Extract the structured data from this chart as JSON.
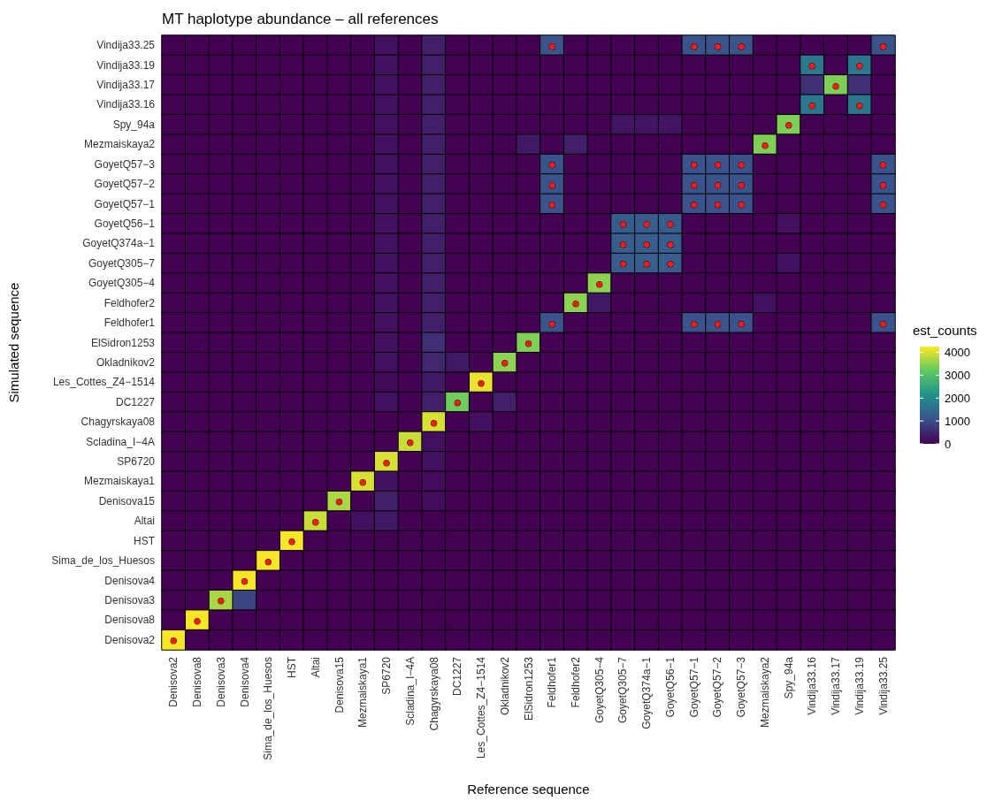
{
  "chart_data": {
    "type": "heatmap",
    "title": "MT haplotype abundance – all references",
    "xlabel": "Reference sequence",
    "ylabel": "Simulated sequence",
    "clabel": "est_counts",
    "categories": [
      "Denisova2",
      "Denisova8",
      "Denisova3",
      "Denisova4",
      "Sima_de_los_Huesos",
      "HST",
      "Altai",
      "Denisova15",
      "Mezmaiskaya1",
      "SP6720",
      "Scladina_I−4A",
      "Chagyrskaya08",
      "DC1227",
      "Les_Cottes_Z4−1514",
      "Okladnikov2",
      "ElSidron1253",
      "Feldhofer1",
      "Feldhofer2",
      "GoyetQ305−4",
      "GoyetQ305−7",
      "GoyetQ374a−1",
      "GoyetQ56−1",
      "GoyetQ57−1",
      "GoyetQ57−2",
      "GoyetQ57−3",
      "Mezmaiskaya2",
      "Spy_94a",
      "Vindija33.16",
      "Vindija33.17",
      "Vindija33.19",
      "Vindija33.25"
    ],
    "y_categories": [
      "Vindija33.25",
      "Vindija33.19",
      "Vindija33.17",
      "Vindija33.16",
      "Spy_94a",
      "Mezmaiskaya2",
      "GoyetQ57−3",
      "GoyetQ57−2",
      "GoyetQ57−1",
      "GoyetQ56−1",
      "GoyetQ374a−1",
      "GoyetQ305−7",
      "GoyetQ305−4",
      "Feldhofer2",
      "Feldhofer1",
      "ElSidron1253",
      "Okladnikov2",
      "Les_Cottes_Z4−1514",
      "DC1227",
      "Chagyrskaya08",
      "Scladina_I−4A",
      "SP6720",
      "Mezmaiskaya1",
      "Denisova15",
      "Altai",
      "HST",
      "Sima_de_los_Huesos",
      "Denisova4",
      "Denisova3",
      "Denisova8",
      "Denisova2"
    ],
    "cells": [
      [
        0,
        0,
        0,
        0,
        0,
        0,
        0,
        0,
        0,
        200,
        0,
        400,
        0,
        0,
        0,
        0,
        1100,
        0,
        0,
        0,
        0,
        0,
        1100,
        1100,
        1100,
        0,
        0,
        0,
        0,
        0,
        1100
      ],
      [
        0,
        0,
        0,
        0,
        0,
        0,
        0,
        0,
        0,
        200,
        0,
        400,
        0,
        0,
        0,
        0,
        0,
        0,
        0,
        0,
        0,
        0,
        0,
        0,
        0,
        0,
        0,
        1700,
        0,
        1700,
        0
      ],
      [
        0,
        0,
        0,
        0,
        0,
        0,
        0,
        0,
        0,
        200,
        0,
        400,
        0,
        0,
        0,
        0,
        0,
        0,
        0,
        0,
        0,
        0,
        0,
        0,
        0,
        0,
        0,
        600,
        3400,
        600,
        0
      ],
      [
        0,
        0,
        0,
        0,
        0,
        0,
        0,
        0,
        0,
        200,
        0,
        400,
        0,
        0,
        0,
        0,
        0,
        0,
        0,
        0,
        0,
        0,
        0,
        0,
        0,
        0,
        0,
        1700,
        0,
        1700,
        0
      ],
      [
        0,
        0,
        0,
        0,
        0,
        0,
        0,
        0,
        0,
        200,
        0,
        400,
        0,
        0,
        0,
        0,
        0,
        0,
        0,
        250,
        250,
        250,
        0,
        0,
        0,
        0,
        3400,
        0,
        0,
        0,
        0
      ],
      [
        0,
        0,
        0,
        0,
        0,
        0,
        0,
        0,
        0,
        200,
        0,
        400,
        0,
        0,
        0,
        300,
        0,
        400,
        0,
        0,
        0,
        0,
        0,
        0,
        0,
        3400,
        0,
        0,
        0,
        0,
        0
      ],
      [
        0,
        0,
        0,
        0,
        0,
        0,
        0,
        0,
        0,
        200,
        0,
        400,
        0,
        0,
        0,
        0,
        1100,
        0,
        0,
        0,
        0,
        0,
        1100,
        1100,
        1100,
        0,
        0,
        0,
        0,
        0,
        1100
      ],
      [
        0,
        0,
        0,
        0,
        0,
        0,
        0,
        0,
        0,
        200,
        0,
        400,
        0,
        0,
        0,
        0,
        1100,
        0,
        0,
        0,
        0,
        0,
        1100,
        1100,
        1100,
        0,
        0,
        0,
        0,
        0,
        1100
      ],
      [
        0,
        0,
        0,
        0,
        0,
        0,
        0,
        0,
        0,
        200,
        0,
        400,
        0,
        0,
        0,
        0,
        1100,
        0,
        0,
        0,
        0,
        0,
        1100,
        1100,
        1100,
        0,
        0,
        0,
        0,
        0,
        1100
      ],
      [
        0,
        0,
        0,
        0,
        0,
        0,
        0,
        0,
        0,
        200,
        0,
        400,
        0,
        0,
        0,
        0,
        0,
        0,
        0,
        1250,
        1250,
        1250,
        0,
        0,
        0,
        0,
        200,
        0,
        0,
        0,
        0
      ],
      [
        0,
        0,
        0,
        0,
        0,
        0,
        0,
        0,
        0,
        200,
        0,
        400,
        0,
        0,
        0,
        0,
        0,
        0,
        0,
        1250,
        1250,
        1250,
        0,
        0,
        0,
        0,
        0,
        0,
        0,
        0,
        0
      ],
      [
        0,
        0,
        0,
        0,
        0,
        0,
        0,
        0,
        0,
        200,
        0,
        400,
        0,
        0,
        0,
        0,
        0,
        0,
        0,
        1250,
        1250,
        1250,
        0,
        0,
        0,
        0,
        200,
        0,
        0,
        0,
        0
      ],
      [
        0,
        0,
        0,
        0,
        0,
        0,
        0,
        0,
        0,
        200,
        0,
        400,
        0,
        0,
        0,
        0,
        0,
        0,
        3500,
        0,
        0,
        0,
        0,
        0,
        0,
        0,
        0,
        0,
        0,
        0,
        0
      ],
      [
        0,
        0,
        0,
        0,
        0,
        0,
        0,
        0,
        0,
        200,
        0,
        400,
        0,
        0,
        0,
        0,
        0,
        3500,
        300,
        0,
        0,
        0,
        0,
        0,
        0,
        200,
        0,
        0,
        0,
        0,
        0
      ],
      [
        0,
        0,
        0,
        0,
        0,
        0,
        0,
        0,
        0,
        200,
        0,
        400,
        0,
        0,
        0,
        0,
        1100,
        0,
        0,
        0,
        0,
        0,
        1100,
        1100,
        1100,
        0,
        0,
        0,
        0,
        0,
        1100
      ],
      [
        0,
        0,
        0,
        0,
        0,
        0,
        0,
        0,
        0,
        200,
        0,
        600,
        0,
        0,
        0,
        3400,
        0,
        0,
        0,
        0,
        0,
        0,
        0,
        0,
        0,
        0,
        0,
        0,
        0,
        0,
        0
      ],
      [
        0,
        0,
        0,
        0,
        0,
        0,
        0,
        0,
        0,
        200,
        0,
        500,
        300,
        0,
        3500,
        0,
        0,
        0,
        0,
        0,
        0,
        0,
        0,
        0,
        0,
        0,
        0,
        0,
        0,
        0,
        0
      ],
      [
        0,
        0,
        0,
        0,
        0,
        0,
        0,
        0,
        0,
        100,
        0,
        300,
        0,
        4100,
        0,
        0,
        0,
        0,
        0,
        0,
        0,
        0,
        0,
        0,
        0,
        0,
        0,
        0,
        0,
        0,
        0
      ],
      [
        0,
        0,
        0,
        0,
        0,
        0,
        0,
        0,
        0,
        200,
        0,
        400,
        3300,
        0,
        400,
        0,
        0,
        0,
        0,
        0,
        0,
        0,
        0,
        0,
        0,
        0,
        0,
        0,
        0,
        0,
        0
      ],
      [
        0,
        0,
        0,
        0,
        0,
        0,
        0,
        0,
        0,
        0,
        0,
        4000,
        0,
        200,
        0,
        0,
        0,
        0,
        0,
        0,
        0,
        0,
        0,
        0,
        0,
        0,
        0,
        0,
        0,
        0,
        0
      ],
      [
        0,
        0,
        0,
        0,
        0,
        0,
        0,
        0,
        0,
        0,
        3900,
        200,
        0,
        0,
        0,
        0,
        0,
        0,
        0,
        0,
        0,
        0,
        0,
        0,
        0,
        0,
        0,
        0,
        0,
        0,
        0
      ],
      [
        0,
        0,
        0,
        0,
        0,
        0,
        0,
        0,
        0,
        4000,
        0,
        200,
        0,
        0,
        0,
        0,
        0,
        0,
        0,
        0,
        0,
        0,
        0,
        0,
        0,
        0,
        0,
        0,
        0,
        0,
        0
      ],
      [
        0,
        0,
        0,
        0,
        0,
        0,
        0,
        0,
        4000,
        200,
        0,
        150,
        0,
        0,
        0,
        0,
        0,
        0,
        0,
        0,
        0,
        0,
        0,
        0,
        0,
        0,
        0,
        0,
        0,
        0,
        0
      ],
      [
        0,
        0,
        0,
        0,
        0,
        0,
        0,
        3700,
        0,
        400,
        0,
        150,
        0,
        0,
        0,
        0,
        0,
        0,
        0,
        0,
        0,
        0,
        0,
        0,
        0,
        0,
        0,
        0,
        0,
        0,
        0
      ],
      [
        0,
        0,
        0,
        0,
        0,
        0,
        3900,
        0,
        200,
        300,
        0,
        0,
        0,
        0,
        0,
        0,
        0,
        0,
        0,
        0,
        0,
        0,
        0,
        0,
        0,
        0,
        0,
        0,
        0,
        0,
        0
      ],
      [
        0,
        0,
        0,
        0,
        0,
        4200,
        0,
        0,
        0,
        0,
        0,
        0,
        0,
        0,
        0,
        0,
        0,
        0,
        0,
        0,
        0,
        0,
        0,
        0,
        0,
        0,
        0,
        0,
        0,
        0,
        0
      ],
      [
        0,
        0,
        0,
        0,
        4200,
        0,
        0,
        0,
        0,
        0,
        0,
        0,
        0,
        0,
        0,
        0,
        0,
        0,
        0,
        0,
        0,
        0,
        0,
        0,
        0,
        0,
        0,
        0,
        0,
        0,
        0
      ],
      [
        0,
        0,
        0,
        4200,
        0,
        0,
        0,
        0,
        0,
        0,
        0,
        0,
        0,
        0,
        0,
        0,
        0,
        0,
        0,
        0,
        0,
        0,
        0,
        0,
        0,
        0,
        0,
        0,
        0,
        0,
        0
      ],
      [
        0,
        0,
        3700,
        900,
        0,
        0,
        0,
        0,
        0,
        0,
        0,
        0,
        0,
        0,
        0,
        0,
        0,
        0,
        0,
        0,
        0,
        0,
        0,
        0,
        0,
        0,
        0,
        0,
        0,
        0,
        0
      ],
      [
        0,
        4200,
        0,
        0,
        0,
        0,
        0,
        0,
        0,
        0,
        0,
        0,
        0,
        0,
        0,
        0,
        0,
        0,
        0,
        0,
        0,
        0,
        0,
        0,
        0,
        0,
        0,
        0,
        0,
        0,
        0
      ],
      [
        4200,
        0,
        0,
        0,
        0,
        0,
        0,
        0,
        0,
        0,
        0,
        0,
        0,
        0,
        0,
        0,
        0,
        0,
        0,
        0,
        0,
        0,
        0,
        0,
        0,
        0,
        0,
        0,
        0,
        0,
        0
      ]
    ],
    "cell_labels": [
      [
        null,
        null,
        null,
        null,
        null,
        null,
        null,
        null,
        null,
        null,
        null,
        null,
        null,
        null,
        null,
        null,
        "●",
        null,
        null,
        null,
        null,
        null,
        "●",
        "●",
        "●",
        null,
        null,
        null,
        null,
        null,
        "●"
      ],
      [
        null,
        null,
        null,
        null,
        null,
        null,
        null,
        null,
        null,
        null,
        null,
        null,
        null,
        null,
        null,
        null,
        null,
        null,
        null,
        null,
        null,
        null,
        null,
        null,
        null,
        null,
        null,
        "●",
        null,
        "●",
        null
      ],
      [
        null,
        null,
        null,
        null,
        null,
        null,
        null,
        null,
        null,
        null,
        null,
        null,
        null,
        null,
        null,
        null,
        null,
        null,
        null,
        null,
        null,
        null,
        null,
        null,
        null,
        null,
        null,
        null,
        "●",
        null,
        null
      ],
      [
        null,
        null,
        null,
        null,
        null,
        null,
        null,
        null,
        null,
        null,
        null,
        null,
        null,
        null,
        null,
        null,
        null,
        null,
        null,
        null,
        null,
        null,
        null,
        null,
        null,
        null,
        null,
        "●",
        null,
        "●",
        null
      ],
      [
        null,
        null,
        null,
        null,
        null,
        null,
        null,
        null,
        null,
        null,
        null,
        null,
        null,
        null,
        null,
        null,
        null,
        null,
        null,
        null,
        null,
        null,
        null,
        null,
        null,
        null,
        "●",
        null,
        null,
        null,
        null
      ],
      [
        null,
        null,
        null,
        null,
        null,
        null,
        null,
        null,
        null,
        null,
        null,
        null,
        null,
        null,
        null,
        null,
        null,
        null,
        null,
        null,
        null,
        null,
        null,
        null,
        null,
        "●",
        null,
        null,
        null,
        null,
        null
      ],
      [
        null,
        null,
        null,
        null,
        null,
        null,
        null,
        null,
        null,
        null,
        null,
        null,
        null,
        null,
        null,
        null,
        "●",
        null,
        null,
        null,
        null,
        null,
        "●",
        "●",
        "●",
        null,
        null,
        null,
        null,
        null,
        "●"
      ],
      [
        null,
        null,
        null,
        null,
        null,
        null,
        null,
        null,
        null,
        null,
        null,
        null,
        null,
        null,
        null,
        null,
        "●",
        null,
        null,
        null,
        null,
        null,
        "●",
        "●",
        "●",
        null,
        null,
        null,
        null,
        null,
        "●"
      ],
      [
        null,
        null,
        null,
        null,
        null,
        null,
        null,
        null,
        null,
        null,
        null,
        null,
        null,
        null,
        null,
        null,
        "●",
        null,
        null,
        null,
        null,
        null,
        "●",
        "●",
        "●",
        null,
        null,
        null,
        null,
        null,
        "●"
      ],
      [
        null,
        null,
        null,
        null,
        null,
        null,
        null,
        null,
        null,
        null,
        null,
        null,
        null,
        null,
        null,
        null,
        null,
        null,
        null,
        "●",
        "●",
        "●",
        null,
        null,
        null,
        null,
        null,
        null,
        null,
        null,
        null
      ],
      [
        null,
        null,
        null,
        null,
        null,
        null,
        null,
        null,
        null,
        null,
        null,
        null,
        null,
        null,
        null,
        null,
        null,
        null,
        null,
        "●",
        "●",
        "●",
        null,
        null,
        null,
        null,
        null,
        null,
        null,
        null,
        null
      ],
      [
        null,
        null,
        null,
        null,
        null,
        null,
        null,
        null,
        null,
        null,
        null,
        null,
        null,
        null,
        null,
        null,
        null,
        null,
        null,
        "●",
        "●",
        "●",
        null,
        null,
        null,
        null,
        null,
        null,
        null,
        null,
        null
      ],
      [
        null,
        null,
        null,
        null,
        null,
        null,
        null,
        null,
        null,
        null,
        null,
        null,
        null,
        null,
        null,
        null,
        null,
        null,
        "●",
        null,
        null,
        null,
        null,
        null,
        null,
        null,
        null,
        null,
        null,
        null,
        null
      ],
      [
        null,
        null,
        null,
        null,
        null,
        null,
        null,
        null,
        null,
        null,
        null,
        null,
        null,
        null,
        null,
        null,
        null,
        "●",
        null,
        null,
        null,
        null,
        null,
        null,
        null,
        null,
        null,
        null,
        null,
        null,
        null
      ],
      [
        null,
        null,
        null,
        null,
        null,
        null,
        null,
        null,
        null,
        null,
        null,
        null,
        null,
        null,
        null,
        null,
        "●",
        null,
        null,
        null,
        null,
        null,
        "●",
        "●",
        "●",
        null,
        null,
        null,
        null,
        null,
        "●"
      ],
      [
        null,
        null,
        null,
        null,
        null,
        null,
        null,
        null,
        null,
        null,
        null,
        null,
        null,
        null,
        null,
        "●",
        null,
        null,
        null,
        null,
        null,
        null,
        null,
        null,
        null,
        null,
        null,
        null,
        null,
        null,
        null
      ],
      [
        null,
        null,
        null,
        null,
        null,
        null,
        null,
        null,
        null,
        null,
        null,
        null,
        null,
        null,
        "●",
        null,
        null,
        null,
        null,
        null,
        null,
        null,
        null,
        null,
        null,
        null,
        null,
        null,
        null,
        null,
        null
      ],
      [
        null,
        null,
        null,
        null,
        null,
        null,
        null,
        null,
        null,
        null,
        null,
        null,
        null,
        "●",
        null,
        null,
        null,
        null,
        null,
        null,
        null,
        null,
        null,
        null,
        null,
        null,
        null,
        null,
        null,
        null,
        null
      ],
      [
        null,
        null,
        null,
        null,
        null,
        null,
        null,
        null,
        null,
        null,
        null,
        null,
        "●",
        null,
        null,
        null,
        null,
        null,
        null,
        null,
        null,
        null,
        null,
        null,
        null,
        null,
        null,
        null,
        null,
        null,
        null
      ],
      [
        null,
        null,
        null,
        null,
        null,
        null,
        null,
        null,
        null,
        null,
        null,
        "●",
        null,
        null,
        null,
        null,
        null,
        null,
        null,
        null,
        null,
        null,
        null,
        null,
        null,
        null,
        null,
        null,
        null,
        null,
        null
      ],
      [
        null,
        null,
        null,
        null,
        null,
        null,
        null,
        null,
        null,
        null,
        "●",
        null,
        null,
        null,
        null,
        null,
        null,
        null,
        null,
        null,
        null,
        null,
        null,
        null,
        null,
        null,
        null,
        null,
        null,
        null,
        null
      ],
      [
        null,
        null,
        null,
        null,
        null,
        null,
        null,
        null,
        null,
        "●",
        null,
        null,
        null,
        null,
        null,
        null,
        null,
        null,
        null,
        null,
        null,
        null,
        null,
        null,
        null,
        null,
        null,
        null,
        null,
        null,
        null
      ],
      [
        null,
        null,
        null,
        null,
        null,
        null,
        null,
        null,
        "●",
        null,
        null,
        null,
        null,
        null,
        null,
        null,
        null,
        null,
        null,
        null,
        null,
        null,
        null,
        null,
        null,
        null,
        null,
        null,
        null,
        null,
        null
      ],
      [
        null,
        null,
        null,
        null,
        null,
        null,
        null,
        "●",
        null,
        null,
        null,
        null,
        null,
        null,
        null,
        null,
        null,
        null,
        null,
        null,
        null,
        null,
        null,
        null,
        null,
        null,
        null,
        null,
        null,
        null,
        null
      ],
      [
        null,
        null,
        null,
        null,
        null,
        null,
        "●",
        null,
        null,
        null,
        null,
        null,
        null,
        null,
        null,
        null,
        null,
        null,
        null,
        null,
        null,
        null,
        null,
        null,
        null,
        null,
        null,
        null,
        null,
        null,
        null
      ],
      [
        null,
        null,
        null,
        null,
        null,
        "●",
        null,
        null,
        null,
        null,
        null,
        null,
        null,
        null,
        null,
        null,
        null,
        null,
        null,
        null,
        null,
        null,
        null,
        null,
        null,
        null,
        null,
        null,
        null,
        null,
        null
      ],
      [
        null,
        null,
        null,
        null,
        "●",
        null,
        null,
        null,
        null,
        null,
        null,
        null,
        null,
        null,
        null,
        null,
        null,
        null,
        null,
        null,
        null,
        null,
        null,
        null,
        null,
        null,
        null,
        null,
        null,
        null,
        null
      ],
      [
        null,
        null,
        null,
        "●",
        null,
        null,
        null,
        null,
        null,
        null,
        null,
        null,
        null,
        null,
        null,
        null,
        null,
        null,
        null,
        null,
        null,
        null,
        null,
        null,
        null,
        null,
        null,
        null,
        null,
        null,
        null
      ],
      [
        null,
        null,
        "●",
        null,
        null,
        null,
        null,
        null,
        null,
        null,
        null,
        null,
        null,
        null,
        null,
        null,
        null,
        null,
        null,
        null,
        null,
        null,
        null,
        null,
        null,
        null,
        null,
        null,
        null,
        null,
        null
      ],
      [
        null,
        "●",
        null,
        null,
        null,
        null,
        null,
        null,
        null,
        null,
        null,
        null,
        null,
        null,
        null,
        null,
        null,
        null,
        null,
        null,
        null,
        null,
        null,
        null,
        null,
        null,
        null,
        null,
        null,
        null,
        null
      ],
      [
        "●",
        null,
        null,
        null,
        null,
        null,
        null,
        null,
        null,
        null,
        null,
        null,
        null,
        null,
        null,
        null,
        null,
        null,
        null,
        null,
        null,
        null,
        null,
        null,
        null,
        null,
        null,
        null,
        null,
        null,
        null
      ]
    ],
    "clim": [
      0,
      4250
    ],
    "cticks": [
      0,
      1000,
      2000,
      3000,
      4000
    ]
  }
}
